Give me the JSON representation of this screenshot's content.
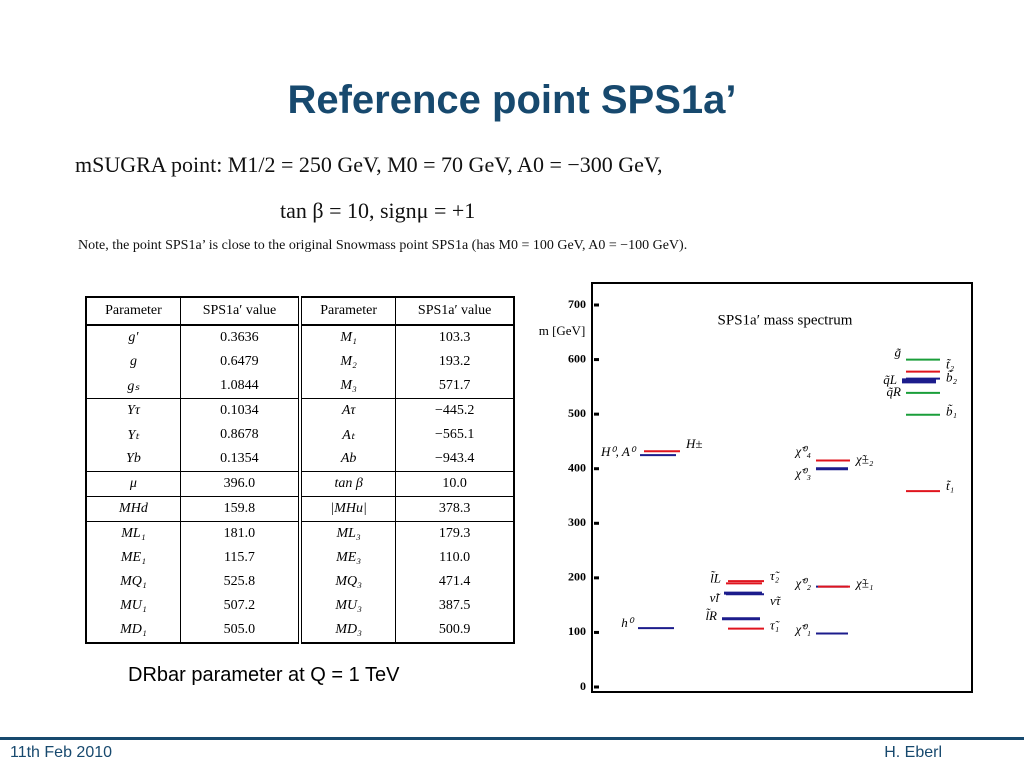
{
  "header": {
    "title": "Reference point SPS1a’"
  },
  "params": {
    "line1": "mSUGRA point: M1/2 = 250 GeV, M0 = 70 GeV, A0 = −300 GeV,",
    "line2": "tan β = 10, signμ = +1",
    "note": "Note, the point SPS1a’ is close to the original Snowmass point SPS1a (has M0 = 100 GeV, A0 = −100 GeV)."
  },
  "table": {
    "headers": [
      "Parameter",
      "SPS1a′ value",
      "Parameter",
      "SPS1a′ value"
    ],
    "rows": [
      [
        "g′",
        "0.3636",
        "M₁",
        "103.3"
      ],
      [
        "g",
        "0.6479",
        "M₂",
        "193.2"
      ],
      [
        "gₛ",
        "1.0844",
        "M₃",
        "571.7"
      ],
      [
        "Yτ",
        "0.1034",
        "Aτ",
        "−445.2"
      ],
      [
        "Yₜ",
        "0.8678",
        "Aₜ",
        "−565.1"
      ],
      [
        "Yb",
        "0.1354",
        "Ab",
        "−943.4"
      ],
      [
        "μ",
        "396.0",
        "tan β",
        "10.0"
      ],
      [
        "MHd",
        "159.8",
        "|MHu|",
        "378.3"
      ],
      [
        "ML₁",
        "181.0",
        "ML₃",
        "179.3"
      ],
      [
        "ME₁",
        "115.7",
        "ME₃",
        "110.0"
      ],
      [
        "MQ₁",
        "525.8",
        "MQ₃",
        "471.4"
      ],
      [
        "MU₁",
        "507.2",
        "MU₃",
        "387.5"
      ],
      [
        "MD₁",
        "505.0",
        "MD₃",
        "500.9"
      ]
    ],
    "caption": "DRbar parameter at Q = 1 TeV"
  },
  "chart_data": {
    "type": "spectrum",
    "title": "SPS1a′ mass spectrum",
    "ylabel": "m [GeV]",
    "ylim": [
      0,
      700
    ],
    "yticks": [
      0,
      100,
      200,
      300,
      400,
      500,
      600,
      700
    ],
    "levels": [
      {
        "name": "h⁰",
        "color": "#1c1c8c",
        "value": 108
      },
      {
        "name": "H⁰, A⁰",
        "color": "#1c1c8c",
        "value": 425
      },
      {
        "name": "H±",
        "color": "#e0141e",
        "value": 432
      },
      {
        "name": "l̃L",
        "color": "#e0141e",
        "value": 190
      },
      {
        "name": "τ̃₂",
        "color": "#e0141e",
        "value": 194
      },
      {
        "name": "ν̃l",
        "color": "#1c1c8c",
        "value": 172
      },
      {
        "name": "ν̃τ",
        "color": "#1c1c8c",
        "value": 170
      },
      {
        "name": "l̃R",
        "color": "#1c1c8c",
        "value": 125
      },
      {
        "name": "τ̃₁",
        "color": "#e0141e",
        "value": 107
      },
      {
        "name": "χ̃⁰₁",
        "color": "#1c1c8c",
        "value": 98
      },
      {
        "name": "χ̃⁰₂",
        "color": "#1c1c8c",
        "value": 184
      },
      {
        "name": "χ̃±₁",
        "color": "#e0141e",
        "value": 184
      },
      {
        "name": "χ̃⁰₃",
        "color": "#1c1c8c",
        "value": 400
      },
      {
        "name": "χ̃⁰₄",
        "color": "#e0141e",
        "value": 415
      },
      {
        "name": "χ̃±₂",
        "color": "#e0141e",
        "value": 415
      },
      {
        "name": "g̃",
        "color": "#1a9e3a",
        "value": 600
      },
      {
        "name": "t̃₂",
        "color": "#e0141e",
        "value": 578
      },
      {
        "name": "q̃L",
        "color": "#1c1c8c",
        "value": 561
      },
      {
        "name": "b̃₂",
        "color": "#1c1c8c",
        "value": 565
      },
      {
        "name": "q̃R",
        "color": "#1a9e3a",
        "value": 539
      },
      {
        "name": "b̃₁",
        "color": "#1a9e3a",
        "value": 499
      },
      {
        "name": "t̃₁",
        "color": "#e0141e",
        "value": 359
      }
    ]
  },
  "footer": {
    "left": "11th Feb 2010",
    "right": "H. Eberl"
  }
}
